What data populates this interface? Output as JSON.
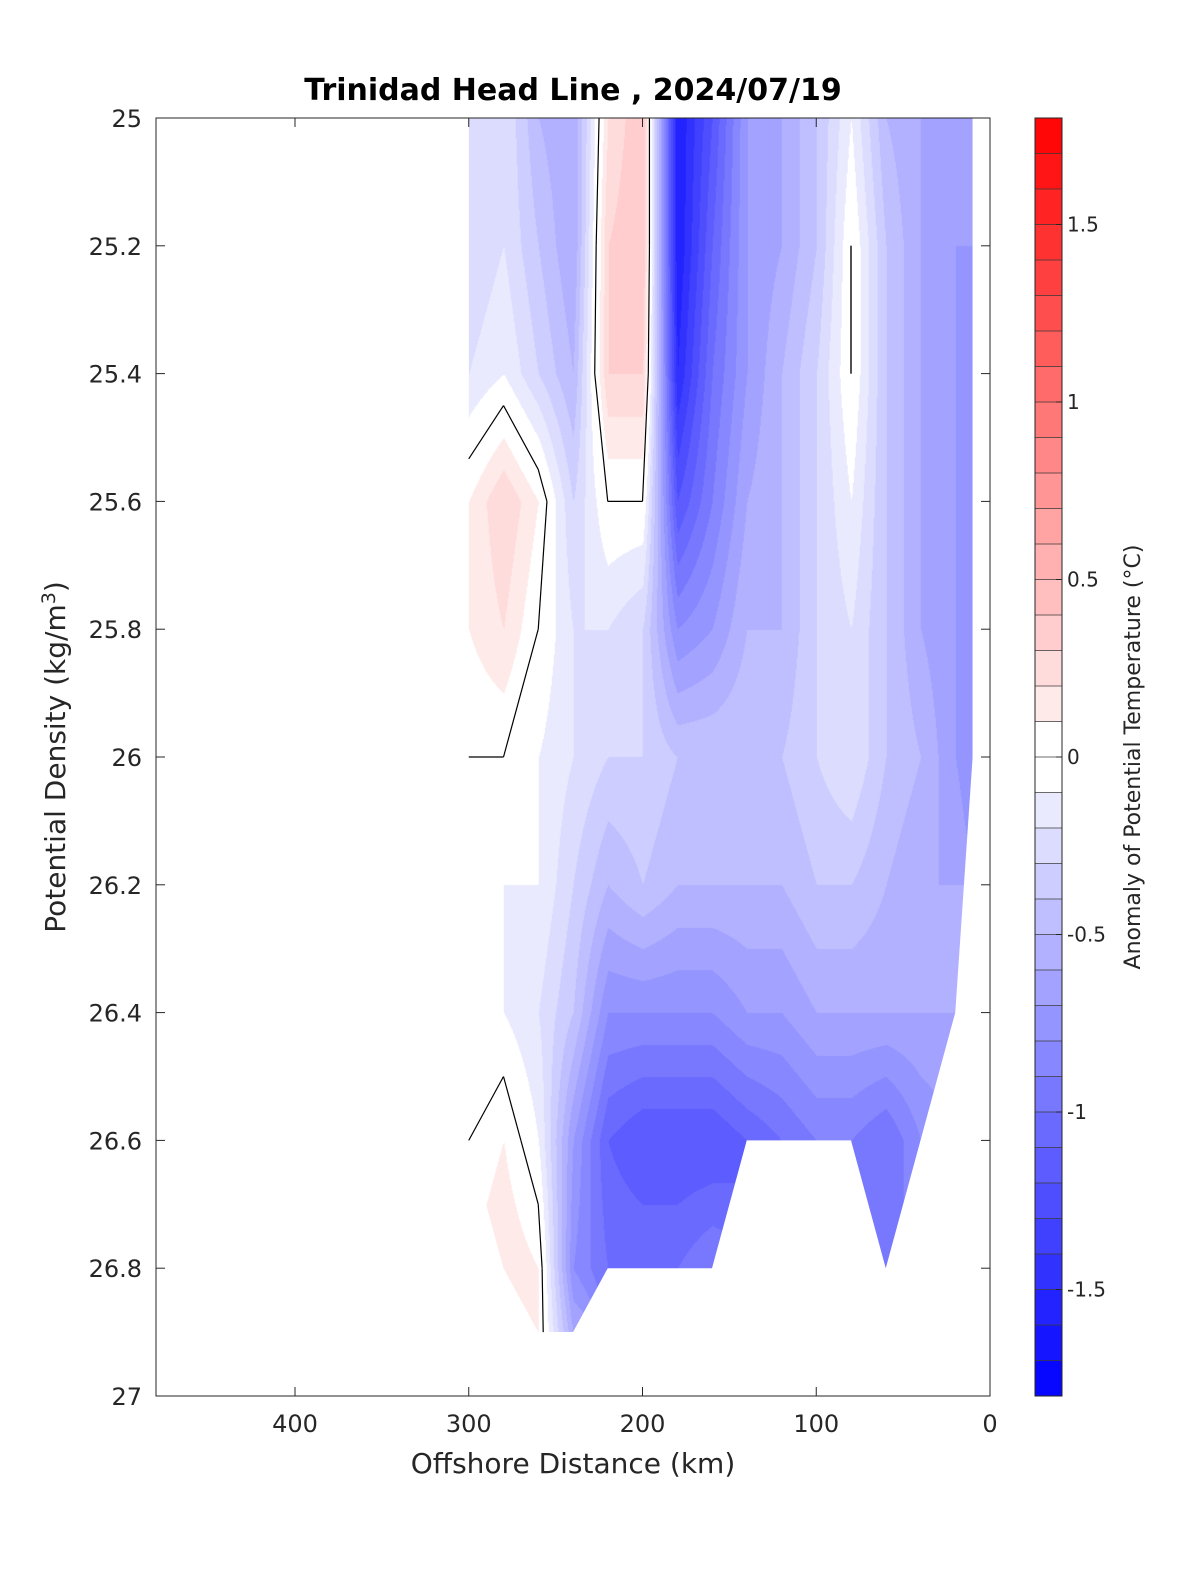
{
  "chart_data": {
    "type": "heatmap",
    "subtype": "filled-contour-section",
    "title": "Trinidad Head Line , 2024/07/19",
    "xlabel": "Offshore Distance (km)",
    "ylabel_main": "Potential Density (kg/m",
    "ylabel_sup": "3",
    "ylabel_close": ")",
    "xlim": [
      480,
      0
    ],
    "ylim": [
      27,
      25
    ],
    "x_reversed": true,
    "y_reversed": true,
    "x_ticks": [
      400,
      300,
      200,
      100,
      0
    ],
    "y_ticks": [
      25,
      25.2,
      25.4,
      25.6,
      25.8,
      26,
      26.2,
      26.4,
      26.6,
      26.8,
      27
    ],
    "y_tick_labels": [
      "25",
      "25.2",
      "25.4",
      "25.6",
      "25.8",
      "26",
      "26.2",
      "26.4",
      "26.6",
      "26.8",
      "27"
    ],
    "x_tick_labels": [
      "400",
      "300",
      "200",
      "100",
      "0"
    ],
    "grid": false,
    "colorbar": {
      "label": "Anomaly of Potential Temperature (°C)",
      "range": [
        -1.8,
        1.8
      ],
      "step": 0.1,
      "ticks": [
        1.5,
        1,
        0.5,
        0,
        -0.5,
        -1,
        -1.5
      ],
      "tick_labels": [
        "1.5",
        "1",
        "0.5",
        "0",
        "-0.5",
        "-1",
        "-1.5"
      ],
      "low_color": "#0000ff",
      "mid_color": "#ffffff",
      "high_color": "#ff0000"
    },
    "grid_x": [
      300,
      280,
      260,
      240,
      220,
      200,
      180,
      160,
      140,
      120,
      100,
      80,
      60,
      40,
      20,
      10
    ],
    "grid_y": [
      25.0,
      25.2,
      25.4,
      25.6,
      25.8,
      26.0,
      26.2,
      26.4,
      26.6,
      26.8,
      26.9
    ],
    "anomaly_values": [
      [
        -0.3,
        -0.2,
        -0.5,
        -0.6,
        0.2,
        0.4,
        -1.6,
        -1.2,
        -0.7,
        -0.6,
        -0.4,
        -0.1,
        -0.5,
        -0.6,
        -0.7,
        null
      ],
      [
        -0.3,
        -0.2,
        -0.4,
        -0.6,
        0.3,
        0.4,
        -1.6,
        -1.1,
        -0.7,
        -0.6,
        -0.4,
        0.0,
        -0.4,
        -0.6,
        -0.7,
        null
      ],
      [
        -0.2,
        -0.1,
        -0.3,
        -0.5,
        0.3,
        0.3,
        -1.5,
        -1.0,
        -0.7,
        -0.5,
        -0.3,
        0.0,
        -0.4,
        -0.6,
        -0.7,
        -0.8
      ],
      [
        0.1,
        0.3,
        0.1,
        -0.3,
        0.0,
        0.0,
        -1.2,
        -0.9,
        -0.6,
        -0.5,
        -0.3,
        -0.1,
        -0.4,
        -0.6,
        -0.7,
        -0.8
      ],
      [
        0.1,
        0.2,
        0.0,
        -0.2,
        -0.2,
        -0.3,
        -0.8,
        -0.7,
        -0.5,
        -0.5,
        -0.3,
        -0.2,
        -0.4,
        -0.6,
        -0.7,
        -0.8
      ],
      [
        0.0,
        0.0,
        -0.1,
        -0.2,
        -0.3,
        -0.3,
        -0.4,
        -0.4,
        -0.4,
        -0.4,
        -0.3,
        -0.2,
        -0.4,
        -0.5,
        -0.7,
        -0.8
      ],
      [
        -0.1,
        -0.1,
        -0.1,
        -0.3,
        -0.5,
        -0.4,
        -0.5,
        -0.5,
        -0.5,
        -0.5,
        -0.4,
        -0.4,
        -0.5,
        -0.6,
        -0.6,
        null
      ],
      [
        -0.1,
        -0.1,
        -0.2,
        -0.4,
        -0.8,
        -0.8,
        -0.8,
        -0.8,
        -0.7,
        -0.7,
        -0.6,
        -0.6,
        -0.6,
        -0.6,
        -0.6,
        null
      ],
      [
        0.0,
        0.1,
        -0.1,
        -0.7,
        -1.1,
        -1.2,
        -1.2,
        -1.2,
        -1.1,
        -1.0,
        -0.9,
        -0.9,
        -1.0,
        -0.8,
        null,
        null
      ],
      [
        null,
        0.2,
        0.1,
        -0.8,
        -1.0,
        -1.0,
        -1.0,
        -0.9,
        null,
        null,
        null,
        null,
        -0.9,
        null,
        null,
        null
      ],
      [
        null,
        null,
        0.1,
        -0.6,
        null,
        null,
        null,
        null,
        null,
        null,
        null,
        null,
        null,
        null,
        null,
        null
      ]
    ],
    "zero_contour_label": "0"
  }
}
